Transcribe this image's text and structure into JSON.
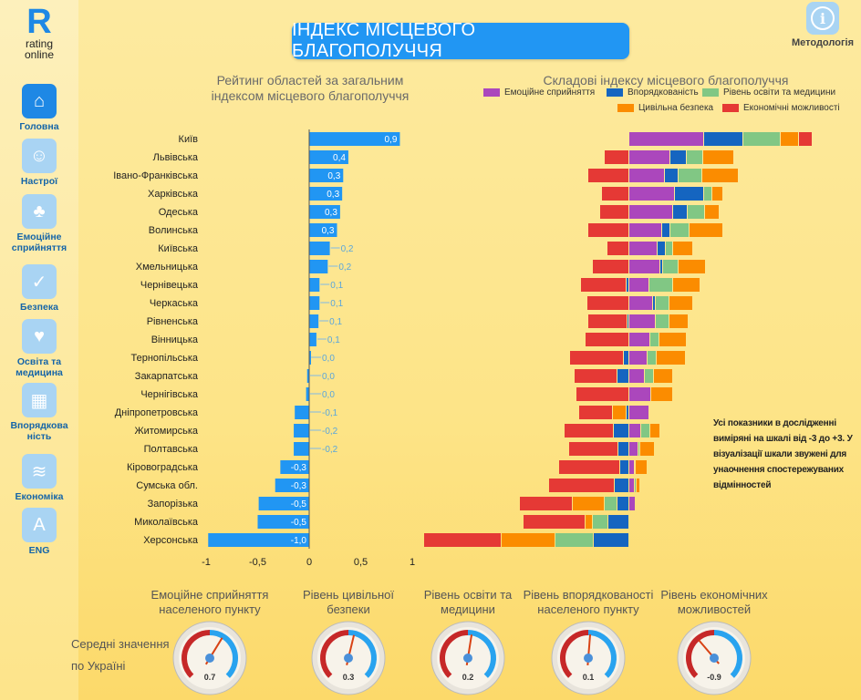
{
  "logo": {
    "text": "R",
    "line1": "rating",
    "line2": "online"
  },
  "sidebar": {
    "items": [
      {
        "label": "Головна",
        "icon": "home-icon",
        "glyph": "⌂",
        "active": true
      },
      {
        "label": "Настрої",
        "icon": "moods-icon",
        "glyph": "☺"
      },
      {
        "label": "Емоційне сприйняття",
        "icon": "trees-icon",
        "glyph": "♣"
      },
      {
        "label": "Безпека",
        "icon": "shield-icon",
        "glyph": "✓"
      },
      {
        "label": "Освіта та медицина",
        "icon": "heart-icon",
        "glyph": "♥"
      },
      {
        "label": "Впорядкова ність",
        "icon": "buildings-icon",
        "glyph": "▦"
      },
      {
        "label": "Економіка",
        "icon": "coins-icon",
        "glyph": "≋"
      },
      {
        "label": "ENG",
        "icon": "translate-icon",
        "glyph": "A"
      }
    ]
  },
  "header": {
    "title": "ІНДЕКС МІСЦЕВОГО БЛАГОПОЛУЧЧЯ",
    "methodology": "Методологія",
    "methodology_glyph": "i"
  },
  "colors": {
    "emotional": "#ab47bc",
    "order": "#1565c0",
    "education": "#81c784",
    "safety": "#fb8c00",
    "economy": "#e53935",
    "bar": "#2196f3"
  },
  "chart_data": [
    {
      "type": "bar",
      "orientation": "horizontal",
      "title": "Рейтинг областей за загальним індексом місцевого благополуччя",
      "categories": [
        "Київ",
        "Львівська",
        "Івано-Франківська",
        "Харківська",
        "Одеська",
        "Волинська",
        "Київська",
        "Хмельницька",
        "Чернівецька",
        "Черкаська",
        "Рівненська",
        "Вінницька",
        "Тернопільська",
        "Закарпатська",
        "Чернігівська",
        "Дніпропетровська",
        "Житомирська",
        "Полтавська",
        "Кіровоградська",
        "Сумська обл.",
        "Запорізька",
        "Миколаївська",
        "Херсонська"
      ],
      "values": [
        0.9,
        0.4,
        0.3,
        0.3,
        0.3,
        0.3,
        0.2,
        0.2,
        0.1,
        0.1,
        0.1,
        0.1,
        0.0,
        0.0,
        0.0,
        -0.1,
        -0.2,
        -0.2,
        -0.3,
        -0.3,
        -0.5,
        -0.5,
        -1.0
      ],
      "raw": [
        0.88,
        0.38,
        0.33,
        0.32,
        0.3,
        0.27,
        0.2,
        0.18,
        0.1,
        0.1,
        0.09,
        0.07,
        0.01,
        -0.02,
        -0.03,
        -0.14,
        -0.15,
        -0.15,
        -0.28,
        -0.33,
        -0.49,
        -0.5,
        -0.98
      ],
      "labels": [
        "0,9",
        "0,4",
        "0,3",
        "0,3",
        "0,3",
        "0,3",
        "0,2",
        "0,2",
        "0,1",
        "0,1",
        "0,1",
        "0,1",
        "0,0",
        "0,0",
        "0,0",
        "-0,1",
        "-0,2",
        "-0,2",
        "-0,3",
        "-0,3",
        "-0,5",
        "-0,5",
        "-1,0"
      ],
      "xlim": [
        -1,
        1
      ],
      "xticks": [
        "-1",
        "-0,5",
        "0",
        "0,5",
        "1"
      ],
      "xtick_values": [
        -1,
        -0.5,
        0,
        0.5,
        1
      ]
    },
    {
      "type": "bar",
      "orientation": "horizontal",
      "stacked": true,
      "diverging": true,
      "title": "Складові індексу місцевого благополуччя",
      "legend": [
        "Емоційне сприйняття",
        "Впорядкованість",
        "Рівень освіти та медицини",
        "Цивільна безпека",
        "Економічні можливості"
      ],
      "series_keys": [
        "emotional",
        "order",
        "education",
        "safety",
        "economy"
      ],
      "units": "scaled",
      "rows": [
        {
          "emotional": 1.64,
          "order": 0.86,
          "education": 0.82,
          "safety": 0.4,
          "economy": 0.3
        },
        {
          "emotional": 0.9,
          "order": 0.36,
          "education": 0.36,
          "safety": 0.68,
          "economy": -0.54
        },
        {
          "emotional": 0.78,
          "order": 0.3,
          "education": 0.52,
          "safety": 0.8,
          "economy": -0.9
        },
        {
          "emotional": 1.0,
          "order": 0.64,
          "education": 0.18,
          "safety": 0.24,
          "economy": -0.6
        },
        {
          "emotional": 0.96,
          "order": 0.32,
          "education": 0.38,
          "safety": 0.32,
          "economy": -0.64
        },
        {
          "emotional": 0.72,
          "order": 0.18,
          "education": 0.42,
          "safety": 0.74,
          "economy": -0.9
        },
        {
          "emotional": 0.62,
          "order": 0.18,
          "education": 0.16,
          "safety": 0.44,
          "economy": -0.48
        },
        {
          "emotional": 0.68,
          "order": 0.06,
          "education": 0.34,
          "safety": 0.6,
          "economy": -0.8
        },
        {
          "emotional": 0.44,
          "order": -0.06,
          "education": 0.52,
          "safety": 0.6,
          "economy": -1.0
        },
        {
          "emotional": 0.52,
          "order": 0.06,
          "education": 0.3,
          "safety": 0.52,
          "economy": -0.92
        },
        {
          "emotional": 0.58,
          "order": -0.04,
          "education": 0.3,
          "safety": 0.42,
          "economy": -0.86
        },
        {
          "emotional": 0.46,
          "order": 0,
          "education": 0.2,
          "safety": 0.6,
          "economy": -0.96
        },
        {
          "emotional": 0.4,
          "order": -0.12,
          "education": 0.2,
          "safety": 0.64,
          "economy": -1.18
        },
        {
          "emotional": 0.34,
          "order": -0.26,
          "education": 0.2,
          "safety": 0.42,
          "economy": -0.94
        },
        {
          "emotional": 0.48,
          "order": 0,
          "education": 0,
          "safety": 0.48,
          "economy": -1.16
        },
        {
          "emotional": 0.44,
          "order": -0.06,
          "education": 0.02,
          "safety": -0.3,
          "economy": -0.74
        },
        {
          "emotional": 0.26,
          "order": -0.34,
          "education": 0.2,
          "safety": 0.22,
          "economy": -1.08
        },
        {
          "emotional": 0.2,
          "order": -0.24,
          "education": 0.04,
          "safety": 0.32,
          "economy": -1.08
        },
        {
          "emotional": 0.12,
          "order": -0.2,
          "education": 0.02,
          "safety": 0.26,
          "economy": -1.34
        },
        {
          "emotional": 0.12,
          "order": -0.32,
          "education": 0.04,
          "safety": 0.08,
          "economy": -1.44
        },
        {
          "emotional": 0.14,
          "order": -0.26,
          "education": -0.28,
          "safety": -0.7,
          "economy": -1.16
        },
        {
          "emotional": 0,
          "order": -0.46,
          "education": -0.34,
          "safety": -0.16,
          "economy": -1.36
        },
        {
          "emotional": 0.02,
          "order": -0.78,
          "education": -0.84,
          "safety": -1.18,
          "economy": -1.7
        }
      ]
    }
  ],
  "note": "Усі показники в дослідженні виміряні на шкалі від -3 до +3. У візуалізації шкали звужені для унаочнення спостережуваних відмінностей",
  "averages": {
    "label1": "Середні значення",
    "label2": "по Україні",
    "range": [
      -3,
      3
    ],
    "gauges": [
      {
        "title1": "Емоційне сприйняття",
        "title2": "населеного пункту",
        "value": 0.7,
        "label": "0.7"
      },
      {
        "title1": "Рівень цивільної",
        "title2": "безпеки",
        "value": 0.3,
        "label": "0.3"
      },
      {
        "title1": "Рівень освіти та",
        "title2": "медицини",
        "value": 0.2,
        "label": "0.2"
      },
      {
        "title1": "Рівень впорядкованості",
        "title2": "населеного пункту",
        "value": 0.1,
        "label": "0.1"
      },
      {
        "title1": "Рівень економічних",
        "title2": "можливостей",
        "value": -0.9,
        "label": "-0.9"
      }
    ]
  }
}
